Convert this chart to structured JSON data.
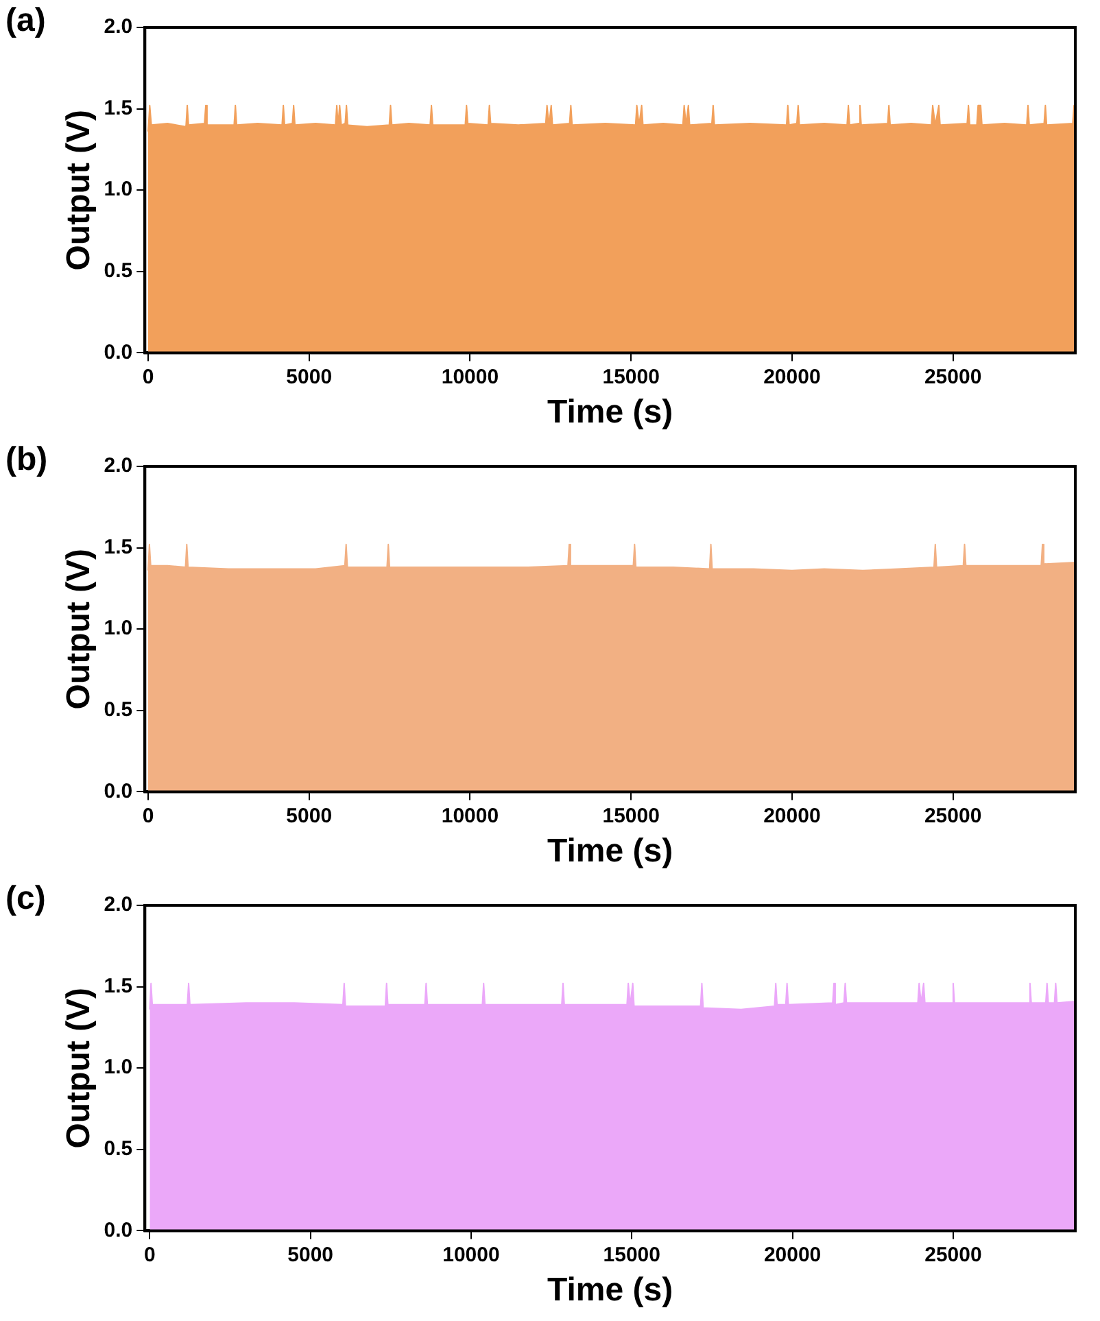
{
  "chart_data": [
    {
      "type": "area",
      "title": "(a)",
      "xlabel": "Time (s)",
      "ylabel": "Output (V)",
      "xlim": [
        -100,
        28800
      ],
      "xticks": [
        0,
        5000,
        10000,
        15000,
        20000,
        25000
      ],
      "ylim": [
        0,
        2
      ],
      "yticks": [
        {
          "value": 0,
          "label": "0.0"
        },
        {
          "value": 0.5,
          "label": "0.5"
        },
        {
          "value": 1,
          "label": "1.0"
        },
        {
          "value": 1.5,
          "label": "1.5"
        },
        {
          "value": 2,
          "label": "2.0"
        }
      ],
      "series": [
        {
          "color": "#f2a05b",
          "x": [
            0,
            50,
            100,
            600,
            1175,
            1215,
            1255,
            1750,
            1790,
            1830,
            2670,
            2710,
            2750,
            3400,
            4160,
            4200,
            4240,
            4480,
            4520,
            4560,
            5200,
            5820,
            5860,
            5900,
            5950,
            6000,
            6120,
            6160,
            6200,
            6800,
            7490,
            7530,
            7570,
            8100,
            8760,
            8800,
            8840,
            9850,
            9890,
            9930,
            10560,
            10600,
            10640,
            11500,
            12350,
            12390,
            12450,
            12520,
            12560,
            13090,
            13130,
            13170,
            14200,
            15140,
            15180,
            15250,
            15330,
            15370,
            16000,
            16610,
            16650,
            16710,
            16780,
            16820,
            17510,
            17550,
            17590,
            18700,
            19830,
            19870,
            19910,
            20150,
            20190,
            20230,
            21000,
            21710,
            21750,
            21790,
            22070,
            22110,
            22150,
            22970,
            23010,
            23050,
            23700,
            24330,
            24370,
            24450,
            24560,
            24600,
            25440,
            25480,
            25520,
            25740,
            25780,
            25860,
            25900,
            26600,
            27290,
            27330,
            27370,
            27830,
            27870,
            27910,
            28720,
            28760,
            28800
          ],
          "values": [
            1.36,
            1.52,
            1.4,
            1.41,
            1.39,
            1.52,
            1.4,
            1.41,
            1.52,
            1.4,
            1.4,
            1.52,
            1.4,
            1.41,
            1.4,
            1.52,
            1.4,
            1.41,
            1.52,
            1.4,
            1.41,
            1.4,
            1.52,
            1.4,
            1.52,
            1.4,
            1.41,
            1.52,
            1.4,
            1.39,
            1.4,
            1.52,
            1.4,
            1.41,
            1.4,
            1.52,
            1.4,
            1.4,
            1.52,
            1.41,
            1.4,
            1.52,
            1.41,
            1.4,
            1.41,
            1.52,
            1.4,
            1.52,
            1.4,
            1.41,
            1.52,
            1.4,
            1.41,
            1.4,
            1.52,
            1.4,
            1.52,
            1.4,
            1.41,
            1.4,
            1.52,
            1.4,
            1.52,
            1.4,
            1.41,
            1.52,
            1.4,
            1.41,
            1.4,
            1.52,
            1.4,
            1.41,
            1.52,
            1.4,
            1.41,
            1.4,
            1.52,
            1.4,
            1.41,
            1.52,
            1.4,
            1.41,
            1.52,
            1.4,
            1.41,
            1.4,
            1.52,
            1.4,
            1.52,
            1.4,
            1.41,
            1.52,
            1.4,
            1.4,
            1.52,
            1.52,
            1.4,
            1.41,
            1.4,
            1.52,
            1.4,
            1.41,
            1.52,
            1.4,
            1.41,
            1.52,
            1.41
          ]
        }
      ]
    },
    {
      "type": "area",
      "title": "(b)",
      "xlabel": "Time (s)",
      "ylabel": "Output (V)",
      "xlim": [
        -100,
        28800
      ],
      "xticks": [
        0,
        5000,
        10000,
        15000,
        20000,
        25000
      ],
      "ylim": [
        0,
        2
      ],
      "yticks": [
        {
          "value": 0,
          "label": "0.0"
        },
        {
          "value": 0.5,
          "label": "0.5"
        },
        {
          "value": 1,
          "label": "1.0"
        },
        {
          "value": 1.5,
          "label": "1.5"
        },
        {
          "value": 2,
          "label": "2.0"
        }
      ],
      "series": [
        {
          "color": "#f2b083",
          "x": [
            0,
            40,
            80,
            600,
            1160,
            1200,
            1240,
            2500,
            4000,
            5200,
            6110,
            6150,
            6190,
            7420,
            7460,
            7500,
            8200,
            10000,
            11800,
            13040,
            13080,
            13120,
            14000,
            15070,
            15110,
            15150,
            16300,
            17440,
            17480,
            17520,
            18800,
            20000,
            21000,
            22200,
            23300,
            24410,
            24450,
            24490,
            25320,
            25360,
            25400,
            26600,
            27740,
            27780,
            27820,
            28800
          ],
          "values": [
            1.36,
            1.52,
            1.39,
            1.39,
            1.38,
            1.52,
            1.38,
            1.37,
            1.37,
            1.37,
            1.39,
            1.52,
            1.38,
            1.38,
            1.52,
            1.38,
            1.38,
            1.38,
            1.38,
            1.39,
            1.52,
            1.39,
            1.39,
            1.39,
            1.52,
            1.38,
            1.38,
            1.37,
            1.52,
            1.37,
            1.37,
            1.36,
            1.37,
            1.36,
            1.37,
            1.38,
            1.52,
            1.38,
            1.39,
            1.52,
            1.39,
            1.39,
            1.39,
            1.52,
            1.4,
            1.41
          ]
        }
      ]
    },
    {
      "type": "area",
      "title": "(c)",
      "xlabel": "Time (s)",
      "ylabel": "Output (V)",
      "xlim": [
        -150,
        28800
      ],
      "xticks": [
        0,
        5000,
        10000,
        15000,
        20000,
        25000
      ],
      "ylim": [
        0,
        2
      ],
      "yticks": [
        {
          "value": 0,
          "label": "0.0"
        },
        {
          "value": 0.5,
          "label": "0.5"
        },
        {
          "value": 1,
          "label": "1.0"
        },
        {
          "value": 1.5,
          "label": "1.5"
        },
        {
          "value": 2,
          "label": "2.0"
        }
      ],
      "series": [
        {
          "color": "#eba8f9",
          "x": [
            0,
            40,
            80,
            600,
            1170,
            1210,
            1250,
            3000,
            4500,
            6010,
            6050,
            6090,
            7330,
            7370,
            7410,
            8560,
            8600,
            8640,
            10350,
            10390,
            10430,
            11500,
            12820,
            12860,
            12900,
            14850,
            14890,
            14950,
            15030,
            15070,
            16200,
            17140,
            17180,
            17220,
            18400,
            19440,
            19480,
            19520,
            19790,
            19830,
            19870,
            21250,
            21290,
            21330,
            21600,
            21640,
            21680,
            23000,
            23900,
            23940,
            24000,
            24080,
            24120,
            24960,
            25000,
            25040,
            26300,
            27350,
            27390,
            27430,
            27880,
            27920,
            27960,
            28150,
            28190,
            28230,
            28800
          ],
          "values": [
            1.36,
            1.52,
            1.39,
            1.39,
            1.39,
            1.52,
            1.39,
            1.4,
            1.4,
            1.39,
            1.52,
            1.38,
            1.38,
            1.52,
            1.39,
            1.39,
            1.52,
            1.39,
            1.39,
            1.52,
            1.39,
            1.39,
            1.39,
            1.52,
            1.39,
            1.39,
            1.52,
            1.39,
            1.52,
            1.38,
            1.38,
            1.38,
            1.52,
            1.37,
            1.36,
            1.38,
            1.52,
            1.39,
            1.39,
            1.52,
            1.39,
            1.4,
            1.52,
            1.39,
            1.4,
            1.52,
            1.4,
            1.4,
            1.4,
            1.52,
            1.4,
            1.52,
            1.4,
            1.4,
            1.52,
            1.4,
            1.4,
            1.4,
            1.52,
            1.4,
            1.4,
            1.52,
            1.4,
            1.4,
            1.52,
            1.4,
            1.41
          ]
        }
      ]
    }
  ]
}
